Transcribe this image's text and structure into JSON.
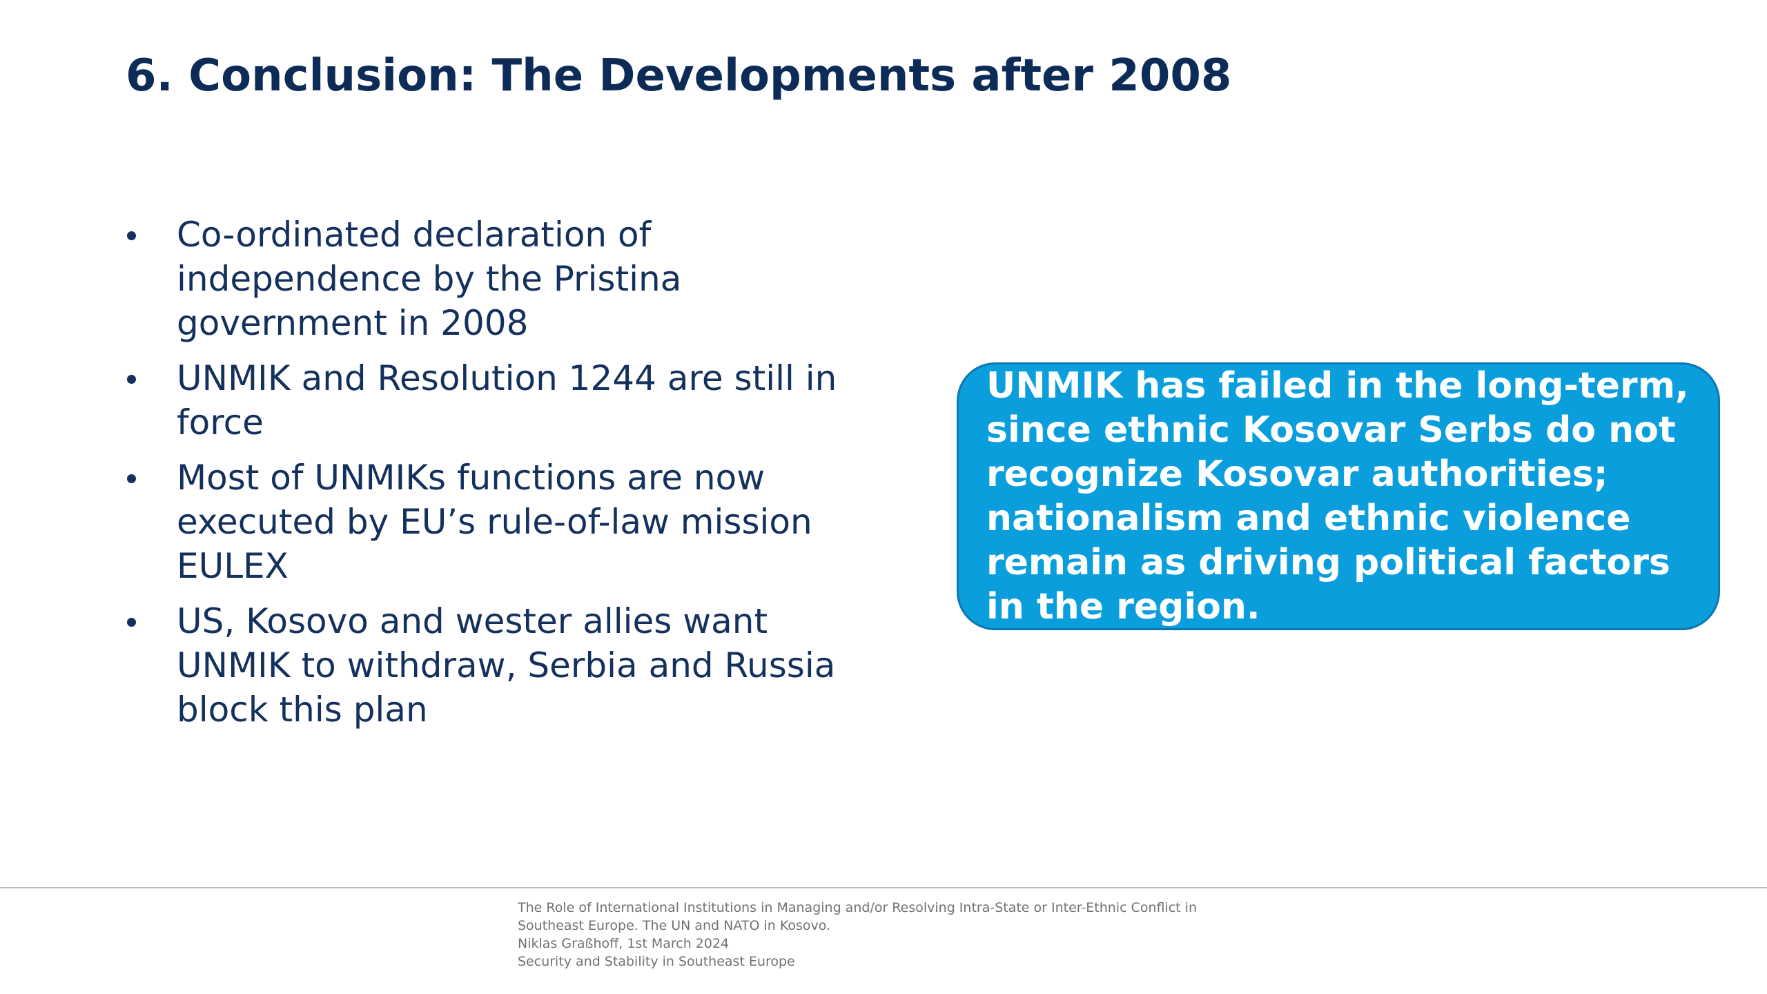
{
  "slide": {
    "title": "6. Conclusion: The Developments after 2008",
    "bullets": [
      "Co-ordinated declaration of independence by the Pristina government in 2008",
      "UNMIK and Resolution 1244 are still in force",
      "Most of UNMIKs functions are now executed by EU’s rule-of-law mission EULEX",
      "US, Kosovo and wester allies want UNMIK to withdraw, Serbia and Russia block this plan"
    ],
    "callout": "UNMIK has failed in the long-term, since ethnic Kosovar Serbs do not recognize Kosovar authorities; nationalism and ethnic violence remain as driving political factors in the region."
  },
  "footer": {
    "lines": [
      "The Role of International Institutions in Managing and/or Resolving Intra-State or Inter-Ethnic Conflict in",
      "Southeast Europe. The UN and NATO in Kosovo.",
      "Niklas Graßhoff, 1st March 2024",
      "Security and Stability in Southeast Europe"
    ]
  },
  "colors": {
    "title": "#0d2b57",
    "body_text": "#14305c",
    "callout_fill": "#0a9fdc",
    "callout_border": "#0b78b2",
    "callout_text": "#ffffff",
    "footer_text": "#6f7276"
  }
}
